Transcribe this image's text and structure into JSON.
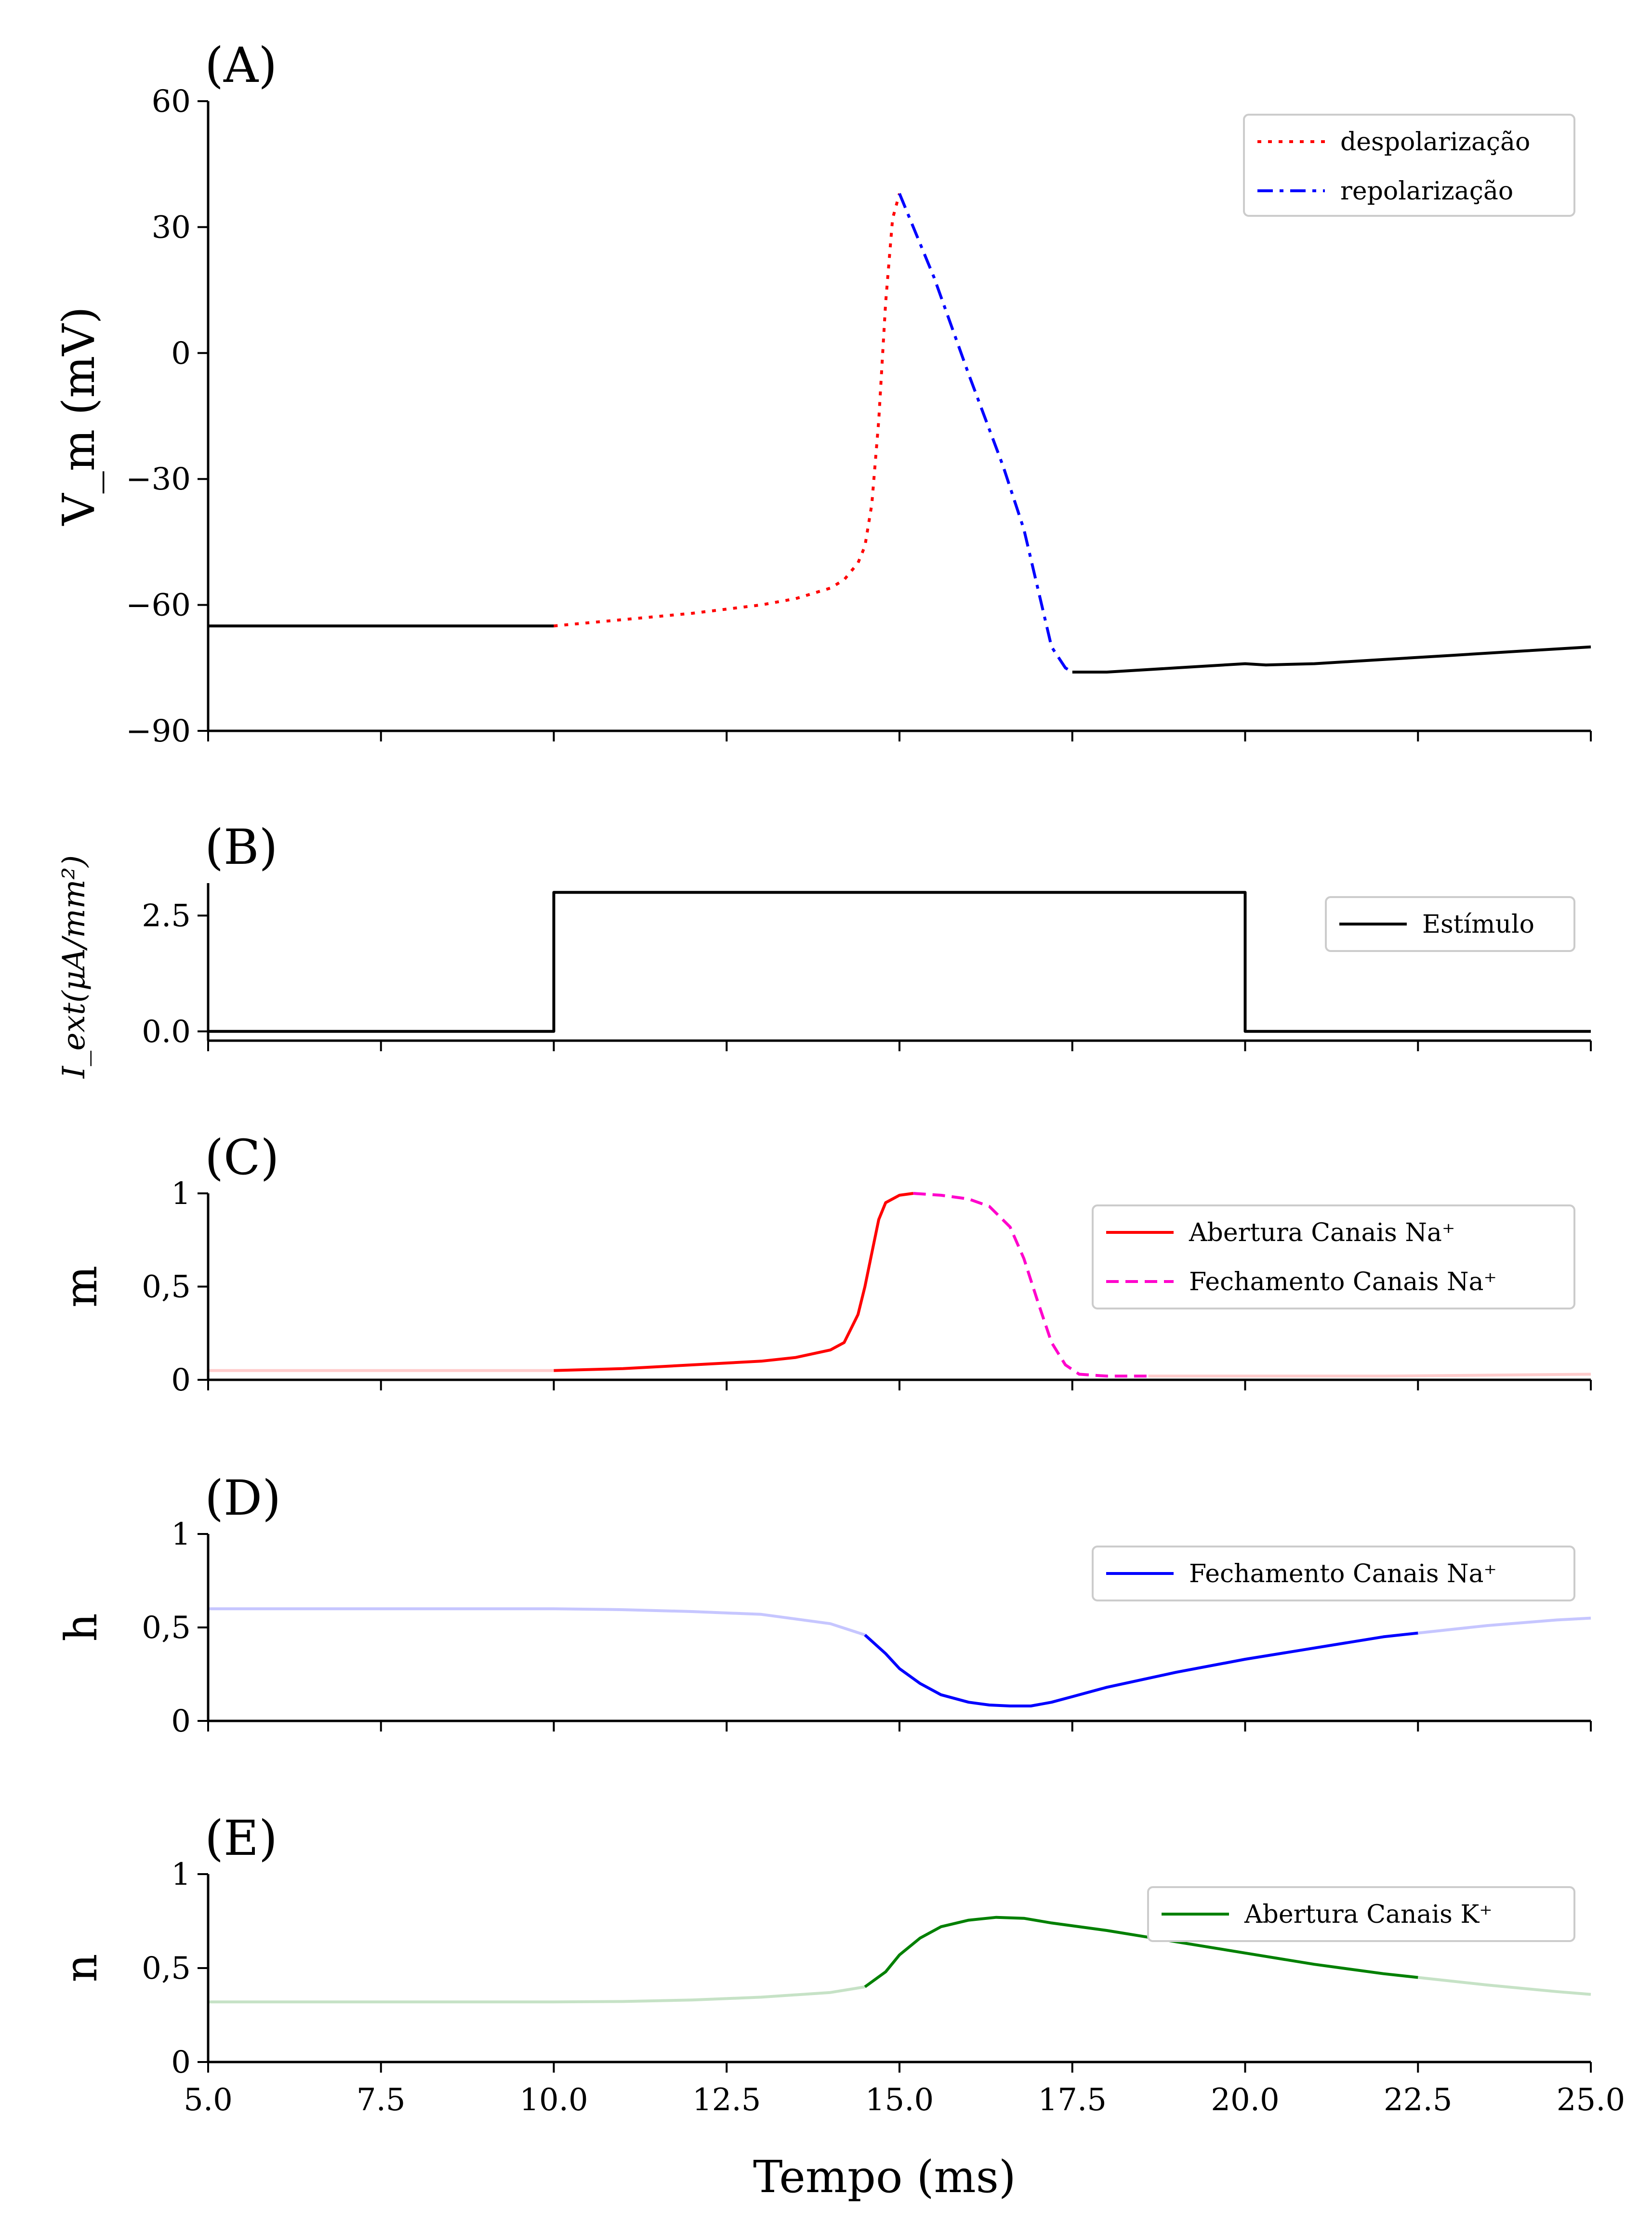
{
  "figure": {
    "xlabel": "Tempo (ms)",
    "xlim": [
      5.0,
      25.0
    ],
    "xticks": [
      "5.0",
      "7.5",
      "10.0",
      "12.5",
      "15.0",
      "17.5",
      "20.0",
      "22.5",
      "25.0"
    ]
  },
  "chart_data": [
    {
      "id": "A",
      "type": "line",
      "panel_label": "(A)",
      "ylabel": "V_m (mV)",
      "ylim": [
        -90,
        60
      ],
      "yticks": [
        "−90",
        "−60",
        "−30",
        "0",
        "30",
        "60"
      ],
      "legend_position": "top-right",
      "series": [
        {
          "name": "",
          "style": "solid",
          "color": "#000000",
          "points": [
            [
              5.0,
              -65
            ],
            [
              10.0,
              -65
            ]
          ]
        },
        {
          "name": "despolarização",
          "style": "dotted",
          "color": "#ff0000",
          "points": [
            [
              10.0,
              -65
            ],
            [
              11.0,
              -63.5
            ],
            [
              12.0,
              -62
            ],
            [
              13.0,
              -60
            ],
            [
              13.5,
              -58.5
            ],
            [
              14.0,
              -56
            ],
            [
              14.2,
              -54
            ],
            [
              14.4,
              -50
            ],
            [
              14.5,
              -46
            ],
            [
              14.6,
              -36
            ],
            [
              14.7,
              -16
            ],
            [
              14.8,
              12
            ],
            [
              14.9,
              32
            ],
            [
              15.0,
              38
            ]
          ]
        },
        {
          "name": "repolarização",
          "style": "dashdot",
          "color": "#0000ff",
          "points": [
            [
              15.0,
              38
            ],
            [
              15.2,
              30
            ],
            [
              15.5,
              18
            ],
            [
              16.0,
              -5
            ],
            [
              16.5,
              -27
            ],
            [
              16.8,
              -42
            ],
            [
              17.0,
              -56
            ],
            [
              17.2,
              -70
            ],
            [
              17.4,
              -75
            ],
            [
              17.5,
              -76
            ]
          ]
        },
        {
          "name": "",
          "style": "solid",
          "color": "#000000",
          "points": [
            [
              17.5,
              -76
            ],
            [
              18.0,
              -76
            ],
            [
              19.0,
              -75
            ],
            [
              20.0,
              -74
            ],
            [
              20.3,
              -74.3
            ],
            [
              21.0,
              -74
            ],
            [
              22.0,
              -73
            ],
            [
              23.0,
              -72
            ],
            [
              24.0,
              -71
            ],
            [
              25.0,
              -70
            ]
          ]
        }
      ]
    },
    {
      "id": "B",
      "type": "line",
      "panel_label": "(B)",
      "ylabel": "I_ext(μA/mm²)",
      "ylim": [
        -0.2,
        3.2
      ],
      "yticks": [
        "0.0",
        "2.5"
      ],
      "legend_position": "right",
      "series": [
        {
          "name": "Estímulo",
          "style": "solid",
          "color": "#000000",
          "points": [
            [
              5.0,
              0
            ],
            [
              10.0,
              0
            ],
            [
              10.0,
              3
            ],
            [
              20.0,
              3
            ],
            [
              20.0,
              0
            ],
            [
              25.0,
              0
            ]
          ]
        }
      ]
    },
    {
      "id": "C",
      "type": "line",
      "panel_label": "(C)",
      "ylabel": "m",
      "ylim": [
        0,
        1
      ],
      "yticks": [
        "0",
        "0,5",
        "1"
      ],
      "legend_position": "right",
      "series": [
        {
          "name": "",
          "style": "solid",
          "color": "#ffcccc",
          "points": [
            [
              5.0,
              0.05
            ],
            [
              10.0,
              0.05
            ]
          ]
        },
        {
          "name": "Abertura Canais Na⁺",
          "style": "solid",
          "color": "#ff0000",
          "points": [
            [
              10.0,
              0.05
            ],
            [
              11.0,
              0.06
            ],
            [
              12.0,
              0.08
            ],
            [
              13.0,
              0.1
            ],
            [
              13.5,
              0.12
            ],
            [
              14.0,
              0.16
            ],
            [
              14.2,
              0.2
            ],
            [
              14.4,
              0.35
            ],
            [
              14.5,
              0.5
            ],
            [
              14.6,
              0.68
            ],
            [
              14.7,
              0.86
            ],
            [
              14.8,
              0.95
            ],
            [
              15.0,
              0.99
            ],
            [
              15.2,
              1.0
            ]
          ]
        },
        {
          "name": "Fechamento Canais Na⁺",
          "style": "dashed",
          "color": "#ff00cc",
          "points": [
            [
              15.2,
              1.0
            ],
            [
              15.6,
              0.99
            ],
            [
              16.0,
              0.97
            ],
            [
              16.3,
              0.93
            ],
            [
              16.6,
              0.82
            ],
            [
              16.8,
              0.65
            ],
            [
              17.0,
              0.42
            ],
            [
              17.2,
              0.2
            ],
            [
              17.4,
              0.08
            ],
            [
              17.6,
              0.03
            ],
            [
              18.0,
              0.02
            ],
            [
              18.6,
              0.02
            ]
          ]
        },
        {
          "name": "",
          "style": "solid",
          "color": "#ffcccc",
          "points": [
            [
              18.6,
              0.02
            ],
            [
              20.0,
              0.02
            ],
            [
              22.0,
              0.02
            ],
            [
              25.0,
              0.03
            ]
          ]
        }
      ]
    },
    {
      "id": "D",
      "type": "line",
      "panel_label": "(D)",
      "ylabel": "h",
      "ylim": [
        0,
        1
      ],
      "yticks": [
        "0",
        "0,5",
        "1"
      ],
      "legend_position": "top-right",
      "series": [
        {
          "name": "",
          "style": "solid",
          "color": "#c6c6ff",
          "points": [
            [
              5.0,
              0.6
            ],
            [
              8.0,
              0.6
            ],
            [
              10.0,
              0.6
            ],
            [
              11.0,
              0.595
            ],
            [
              12.0,
              0.585
            ],
            [
              13.0,
              0.57
            ],
            [
              14.0,
              0.52
            ],
            [
              14.5,
              0.46
            ]
          ]
        },
        {
          "name": "Fechamento Canais Na⁺",
          "style": "solid",
          "color": "#0000ff",
          "points": [
            [
              14.5,
              0.46
            ],
            [
              14.8,
              0.36
            ],
            [
              15.0,
              0.28
            ],
            [
              15.3,
              0.2
            ],
            [
              15.6,
              0.14
            ],
            [
              16.0,
              0.1
            ],
            [
              16.3,
              0.085
            ],
            [
              16.6,
              0.08
            ],
            [
              16.9,
              0.08
            ],
            [
              17.2,
              0.1
            ],
            [
              17.5,
              0.13
            ],
            [
              18.0,
              0.18
            ],
            [
              19.0,
              0.26
            ],
            [
              20.0,
              0.33
            ],
            [
              21.0,
              0.39
            ],
            [
              22.0,
              0.45
            ],
            [
              22.5,
              0.47
            ]
          ]
        },
        {
          "name": "",
          "style": "solid",
          "color": "#c6c6ff",
          "points": [
            [
              22.5,
              0.47
            ],
            [
              23.5,
              0.51
            ],
            [
              24.5,
              0.54
            ],
            [
              25.0,
              0.55
            ]
          ]
        }
      ]
    },
    {
      "id": "E",
      "type": "line",
      "panel_label": "(E)",
      "ylabel": "n",
      "ylim": [
        0,
        1
      ],
      "yticks": [
        "0",
        "0,5",
        "1"
      ],
      "legend_position": "top-right",
      "series": [
        {
          "name": "",
          "style": "solid",
          "color": "#c6e2c6",
          "points": [
            [
              5.0,
              0.32
            ],
            [
              8.0,
              0.32
            ],
            [
              10.0,
              0.32
            ],
            [
              11.0,
              0.322
            ],
            [
              12.0,
              0.33
            ],
            [
              13.0,
              0.345
            ],
            [
              14.0,
              0.37
            ],
            [
              14.5,
              0.4
            ]
          ]
        },
        {
          "name": "Abertura Canais K⁺",
          "style": "solid",
          "color": "#008000",
          "points": [
            [
              14.5,
              0.4
            ],
            [
              14.8,
              0.48
            ],
            [
              15.0,
              0.57
            ],
            [
              15.3,
              0.66
            ],
            [
              15.6,
              0.72
            ],
            [
              16.0,
              0.755
            ],
            [
              16.4,
              0.77
            ],
            [
              16.8,
              0.765
            ],
            [
              17.2,
              0.74
            ],
            [
              18.0,
              0.7
            ],
            [
              19.0,
              0.64
            ],
            [
              20.0,
              0.58
            ],
            [
              21.0,
              0.52
            ],
            [
              22.0,
              0.47
            ],
            [
              22.5,
              0.45
            ]
          ]
        },
        {
          "name": "",
          "style": "solid",
          "color": "#c6e2c6",
          "points": [
            [
              22.5,
              0.45
            ],
            [
              23.5,
              0.41
            ],
            [
              24.5,
              0.375
            ],
            [
              25.0,
              0.36
            ]
          ]
        }
      ]
    }
  ]
}
